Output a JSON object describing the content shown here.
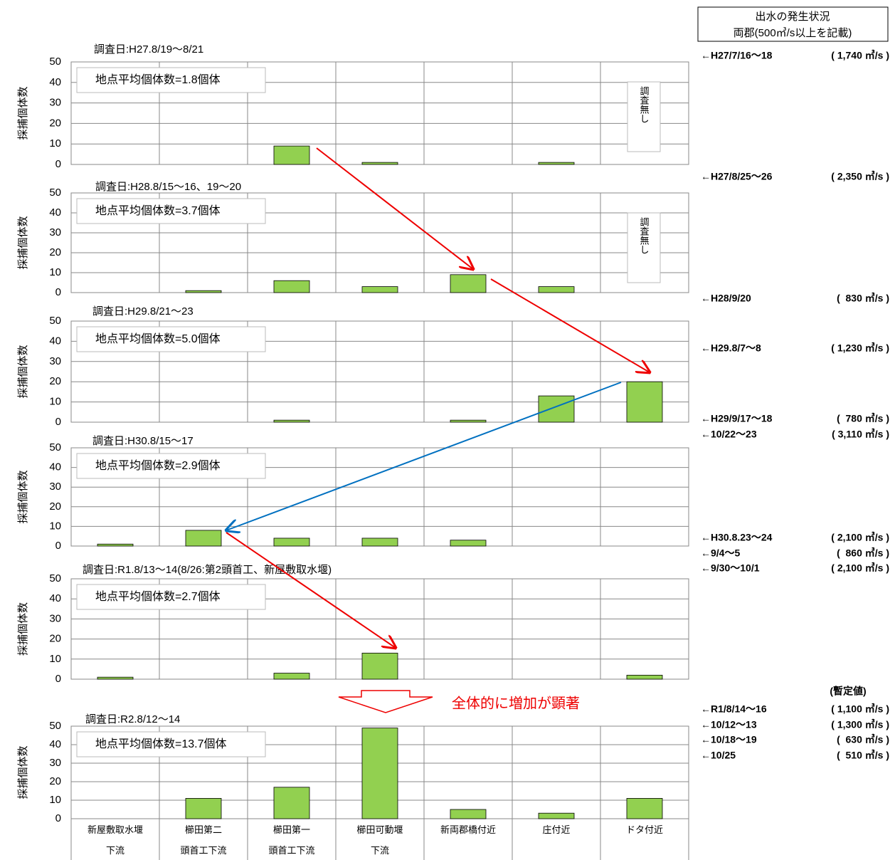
{
  "chart_data": [
    {
      "type": "bar",
      "title": "調査日:H27.8/19～8/21",
      "annotation": "地点平均個体数=1.8個体",
      "y_label": "採捕個体数",
      "note": "調査無し",
      "categories": [
        null,
        null,
        null,
        null,
        null,
        null,
        null
      ],
      "values": [
        0,
        0,
        9,
        1,
        0,
        1,
        null
      ],
      "color": "#92d050",
      "ylim": [
        0,
        50
      ],
      "yticks": [
        0,
        10,
        20,
        30,
        40,
        50
      ],
      "grid": true
    },
    {
      "type": "bar",
      "title": "調査日:H28.8/15～16、19～20",
      "annotation": "地点平均個体数=3.7個体",
      "y_label": "採捕個体数",
      "note": "調査無し",
      "categories": [
        null,
        null,
        null,
        null,
        null,
        null,
        null
      ],
      "values": [
        0,
        1,
        6,
        3,
        9,
        3,
        null
      ],
      "color": "#92d050",
      "ylim": [
        0,
        50
      ],
      "yticks": [
        0,
        10,
        20,
        30,
        40,
        50
      ],
      "grid": true
    },
    {
      "type": "bar",
      "title": "調査日:H29.8/21～23",
      "annotation": "地点平均個体数=5.0個体",
      "y_label": "採捕個体数",
      "categories": [
        null,
        null,
        null,
        null,
        null,
        null,
        null
      ],
      "values": [
        0,
        0,
        1,
        0,
        1,
        13,
        20
      ],
      "color": "#92d050",
      "ylim": [
        0,
        50
      ],
      "yticks": [
        0,
        10,
        20,
        30,
        40,
        50
      ],
      "grid": true
    },
    {
      "type": "bar",
      "title": "調査日:H30.8/15～17",
      "annotation": "地点平均個体数=2.9個体",
      "y_label": "採捕個体数",
      "categories": [
        null,
        null,
        null,
        null,
        null,
        null,
        null
      ],
      "values": [
        1,
        8,
        4,
        4,
        3,
        0,
        0
      ],
      "color": "#92d050",
      "ylim": [
        0,
        50
      ],
      "yticks": [
        0,
        10,
        20,
        30,
        40,
        50
      ],
      "grid": true
    },
    {
      "type": "bar",
      "title": "調査日:R1.8/13～14(8/26:第2頭首工、新屋敷取水堰)",
      "annotation": "地点平均個体数=2.7個体",
      "y_label": "採捕個体数",
      "categories": [
        null,
        null,
        null,
        null,
        null,
        null,
        null
      ],
      "values": [
        1,
        0,
        3,
        13,
        0,
        0,
        2
      ],
      "color": "#92d050",
      "ylim": [
        0,
        50
      ],
      "yticks": [
        0,
        10,
        20,
        30,
        40,
        50
      ],
      "grid": true
    },
    {
      "type": "bar",
      "title": "調査日:R2.8/12～14",
      "annotation": "地点平均個体数=13.7個体",
      "y_label": "採捕個体数",
      "categories": [
        "新屋敷取水堰\n下流",
        "櫛田第二\n頭首工下流",
        "櫛田第一\n頭首工下流",
        "櫛田可動堰\n下流",
        "新両郡橋付近",
        "庄付近",
        "ドタ付近"
      ],
      "values": [
        0,
        11,
        17,
        49,
        5,
        3,
        11
      ],
      "color": "#92d050",
      "ylim": [
        0,
        50
      ],
      "yticks": [
        0,
        10,
        20,
        30,
        40,
        50
      ],
      "grid": true
    }
  ],
  "callout": "全体的に増加が顕著",
  "flood_panel": {
    "title": "出水の発生状況",
    "subtitle": "両郡(500㎥/s以上を記載)",
    "provisional": "(暫定値)",
    "entries": [
      {
        "date": "←H27/7/16～18",
        "flow": "( 1,740 ㎥/s )"
      },
      {
        "date": "←H27/8/25～26",
        "flow": "( 2,350 ㎥/s )"
      },
      {
        "date": "←H28/9/20",
        "flow": "(  830 ㎥/s )"
      },
      {
        "date": "←H29.8/7～8",
        "flow": "( 1,230 ㎥/s )"
      },
      {
        "date": "←H29/9/17～18",
        "flow": "(  780 ㎥/s )"
      },
      {
        "date": "←10/22～23",
        "flow": "( 3,110 ㎥/s )"
      },
      {
        "date": "←H30.8.23～24",
        "flow": "( 2,100 ㎥/s )"
      },
      {
        "date": "←9/4～5",
        "flow": "(  860 ㎥/s )"
      },
      {
        "date": "←9/30～10/1",
        "flow": "( 2,100 ㎥/s )"
      },
      {
        "date": "←R1/8/14～16",
        "flow": "( 1,100 ㎥/s )"
      },
      {
        "date": "←10/12～13",
        "flow": "( 1,300 ㎥/s )"
      },
      {
        "date": "←10/18～19",
        "flow": "(  630 ㎥/s )"
      },
      {
        "date": "←10/25",
        "flow": "(  510 ㎥/s )"
      }
    ]
  }
}
